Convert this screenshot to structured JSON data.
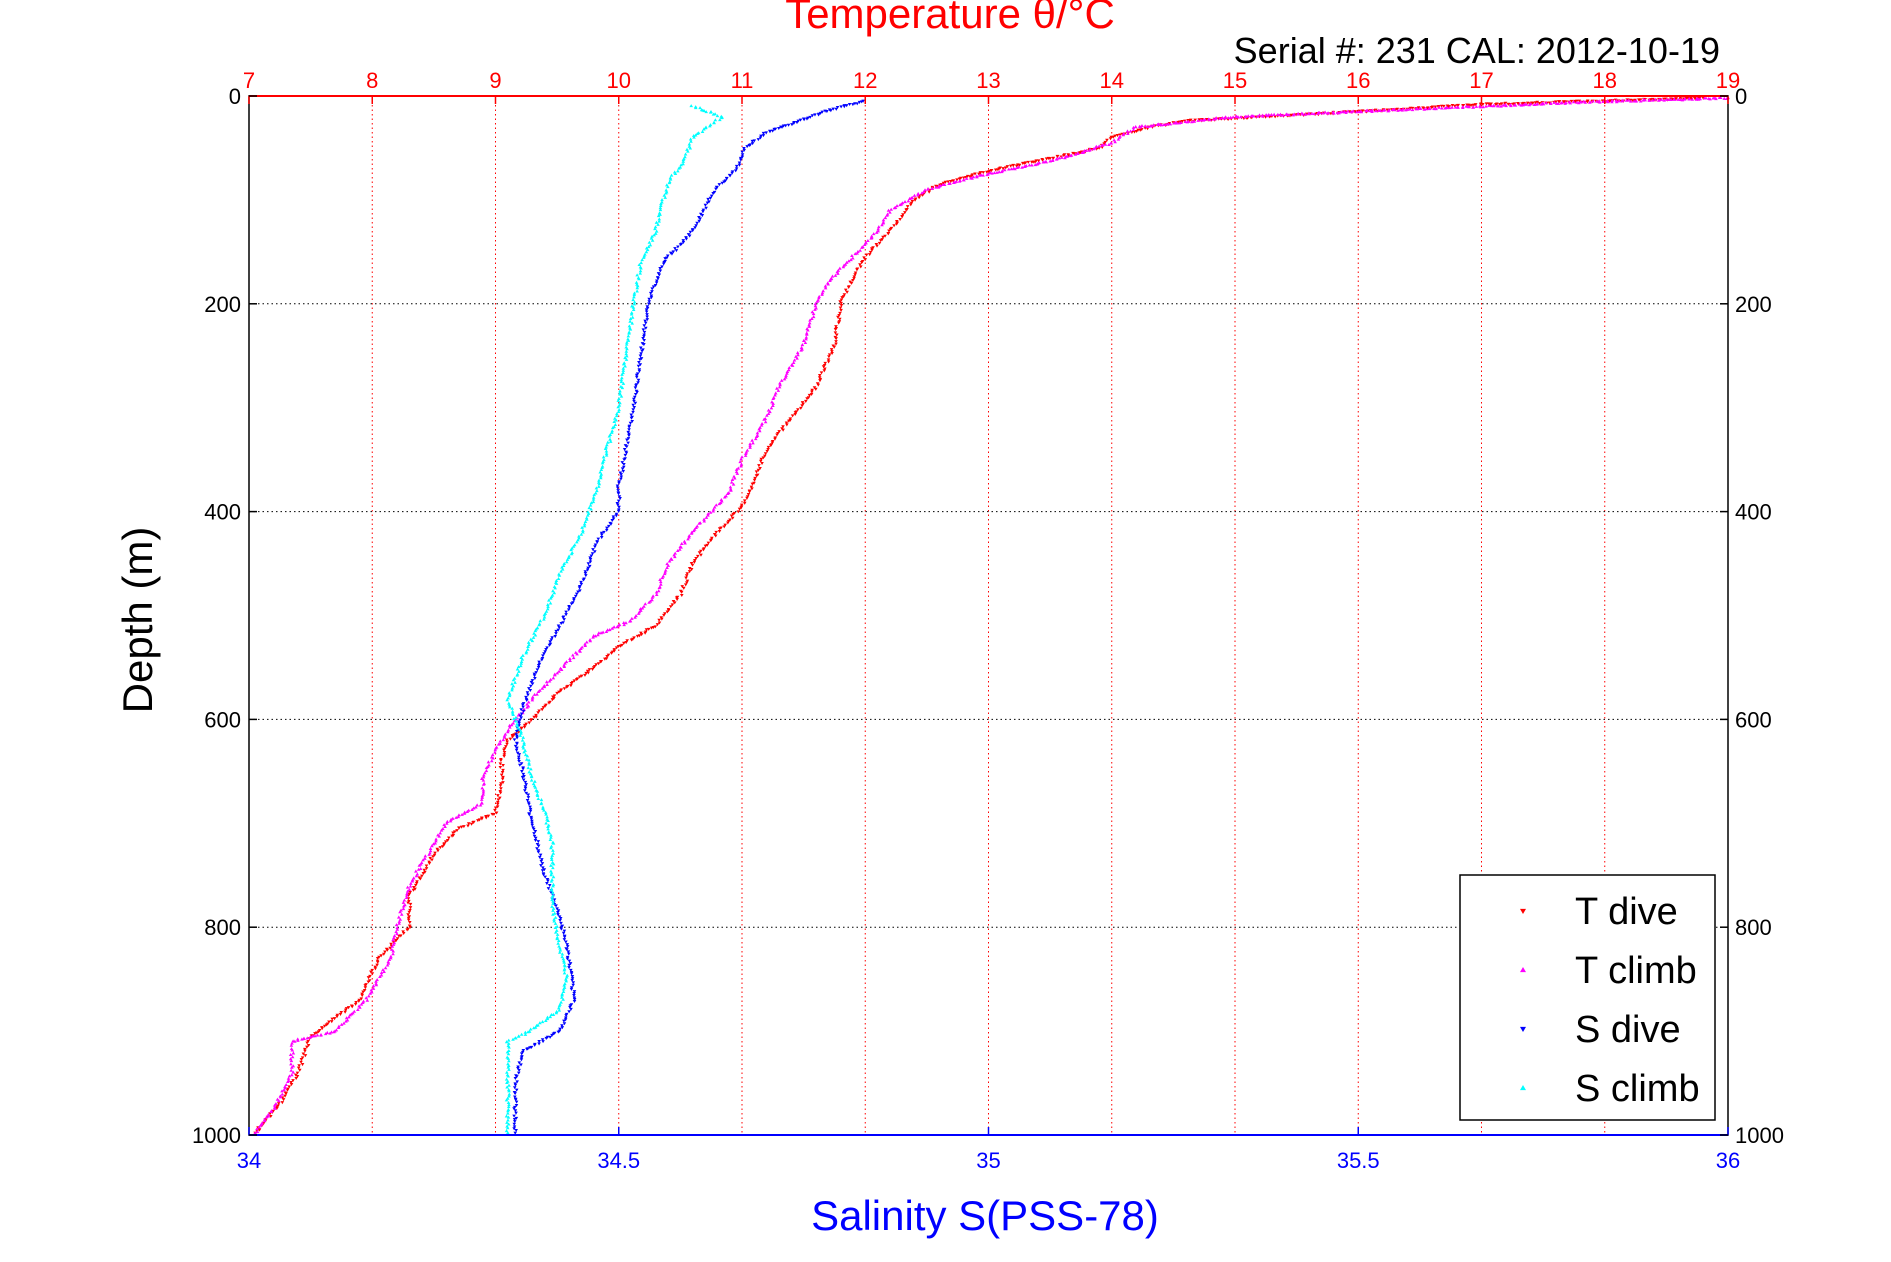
{
  "chart_data": {
    "type": "scatter",
    "title": "Temperature θ/°C",
    "subtitle": "Serial #: 231  CAL: 2012-10-19",
    "xlabel": "Salinity S(PSS-78)",
    "ylabel": "Depth (m)",
    "x_top_label": "Temperature θ/°C",
    "xlim": [
      34,
      36
    ],
    "x_top_lim": [
      7,
      19
    ],
    "ylim": [
      0,
      1000
    ],
    "y_reversed": true,
    "grid": true,
    "legend_position": "bottom-right",
    "x_ticks": [
      "34",
      "34.5",
      "35",
      "35.5",
      "36"
    ],
    "x_top_ticks": [
      "7",
      "8",
      "9",
      "10",
      "11",
      "12",
      "13",
      "14",
      "15",
      "16",
      "17",
      "18",
      "19"
    ],
    "y_ticks": [
      "0",
      "200",
      "400",
      "600",
      "800",
      "1000"
    ],
    "colors": {
      "temperature_axis": "#ff0000",
      "salinity_axis": "#0000ff",
      "T_dive": "#ff0000",
      "T_climb": "#ff00ff",
      "S_dive": "#0000ff",
      "S_climb": "#00ffff"
    },
    "series": [
      {
        "name": "T dive",
        "axis": "temperature",
        "marker": "down-triangle",
        "points": [
          [
            18.8,
            2
          ],
          [
            17,
            8
          ],
          [
            16,
            15
          ],
          [
            14.6,
            24
          ],
          [
            14.3,
            30
          ],
          [
            14,
            40
          ],
          [
            13.9,
            50
          ],
          [
            13.5,
            60
          ],
          [
            13,
            72
          ],
          [
            12.6,
            85
          ],
          [
            12.4,
            100
          ],
          [
            12.2,
            130
          ],
          [
            12,
            155
          ],
          [
            11.9,
            175
          ],
          [
            11.8,
            200
          ],
          [
            11.75,
            240
          ],
          [
            11.6,
            280
          ],
          [
            11.4,
            310
          ],
          [
            11.2,
            340
          ],
          [
            11.1,
            370
          ],
          [
            11,
            395
          ],
          [
            10.8,
            420
          ],
          [
            10.6,
            450
          ],
          [
            10.5,
            480
          ],
          [
            10.3,
            510
          ],
          [
            10,
            530
          ],
          [
            9.8,
            550
          ],
          [
            9.5,
            575
          ],
          [
            9.3,
            600
          ],
          [
            9.1,
            620
          ],
          [
            9.05,
            640
          ],
          [
            9.05,
            660
          ],
          [
            9,
            690
          ],
          [
            8.7,
            705
          ],
          [
            8.5,
            730
          ],
          [
            8.3,
            770
          ],
          [
            8.3,
            800
          ],
          [
            8.05,
            830
          ],
          [
            7.9,
            870
          ],
          [
            7.5,
            905
          ],
          [
            7.4,
            940
          ],
          [
            7.25,
            970
          ],
          [
            7.05,
            998
          ]
        ]
      },
      {
        "name": "T climb",
        "axis": "temperature",
        "marker": "up-triangle",
        "points": [
          [
            19,
            2
          ],
          [
            17.8,
            6
          ],
          [
            16,
            15
          ],
          [
            15,
            20
          ],
          [
            14.2,
            30
          ],
          [
            14,
            45
          ],
          [
            13.6,
            60
          ],
          [
            13,
            75
          ],
          [
            12.5,
            90
          ],
          [
            12.2,
            110
          ],
          [
            12.1,
            130
          ],
          [
            11.85,
            160
          ],
          [
            11.7,
            180
          ],
          [
            11.6,
            200
          ],
          [
            11.5,
            240
          ],
          [
            11.3,
            280
          ],
          [
            11.2,
            310
          ],
          [
            11,
            350
          ],
          [
            10.9,
            380
          ],
          [
            10.6,
            420
          ],
          [
            10.4,
            450
          ],
          [
            10.3,
            480
          ],
          [
            10.1,
            505
          ],
          [
            9.8,
            520
          ],
          [
            9.5,
            555
          ],
          [
            9.3,
            580
          ],
          [
            9.1,
            610
          ],
          [
            9,
            630
          ],
          [
            8.9,
            655
          ],
          [
            8.9,
            680
          ],
          [
            8.6,
            700
          ],
          [
            8.45,
            730
          ],
          [
            8.3,
            760
          ],
          [
            8.2,
            800
          ],
          [
            8.15,
            830
          ],
          [
            7.95,
            870
          ],
          [
            7.7,
            900
          ],
          [
            7.35,
            910
          ],
          [
            7.35,
            940
          ],
          [
            7.2,
            975
          ],
          [
            7.05,
            998
          ]
        ]
      },
      {
        "name": "S dive",
        "axis": "salinity",
        "marker": "down-triangle",
        "points": [
          [
            34.83,
            5
          ],
          [
            34.78,
            15
          ],
          [
            34.7,
            35
          ],
          [
            34.67,
            50
          ],
          [
            34.66,
            70
          ],
          [
            34.63,
            90
          ],
          [
            34.6,
            130
          ],
          [
            34.56,
            160
          ],
          [
            34.54,
            200
          ],
          [
            34.53,
            250
          ],
          [
            34.52,
            300
          ],
          [
            34.51,
            340
          ],
          [
            34.5,
            375
          ],
          [
            34.5,
            400
          ],
          [
            34.47,
            430
          ],
          [
            34.45,
            470
          ],
          [
            34.42,
            510
          ],
          [
            34.39,
            550
          ],
          [
            34.37,
            590
          ],
          [
            34.36,
            620
          ],
          [
            34.37,
            650
          ],
          [
            34.38,
            690
          ],
          [
            34.39,
            720
          ],
          [
            34.4,
            750
          ],
          [
            34.42,
            790
          ],
          [
            34.43,
            820
          ],
          [
            34.44,
            870
          ],
          [
            34.42,
            900
          ],
          [
            34.37,
            920
          ],
          [
            34.36,
            950
          ],
          [
            34.36,
            998
          ]
        ]
      },
      {
        "name": "S climb",
        "axis": "salinity",
        "marker": "up-triangle",
        "points": [
          [
            34.6,
            10
          ],
          [
            34.62,
            15
          ],
          [
            34.64,
            20
          ],
          [
            34.6,
            40
          ],
          [
            34.59,
            60
          ],
          [
            34.57,
            80
          ],
          [
            34.56,
            100
          ],
          [
            34.55,
            130
          ],
          [
            34.53,
            160
          ],
          [
            34.52,
            200
          ],
          [
            34.51,
            250
          ],
          [
            34.5,
            300
          ],
          [
            34.48,
            350
          ],
          [
            34.47,
            380
          ],
          [
            34.45,
            420
          ],
          [
            34.42,
            460
          ],
          [
            34.4,
            500
          ],
          [
            34.37,
            540
          ],
          [
            34.35,
            580
          ],
          [
            34.37,
            620
          ],
          [
            34.38,
            650
          ],
          [
            34.4,
            690
          ],
          [
            34.41,
            720
          ],
          [
            34.41,
            750
          ],
          [
            34.41,
            780
          ],
          [
            34.42,
            820
          ],
          [
            34.43,
            850
          ],
          [
            34.42,
            880
          ],
          [
            34.38,
            900
          ],
          [
            34.35,
            910
          ],
          [
            34.35,
            950
          ],
          [
            34.35,
            998
          ]
        ]
      }
    ]
  }
}
